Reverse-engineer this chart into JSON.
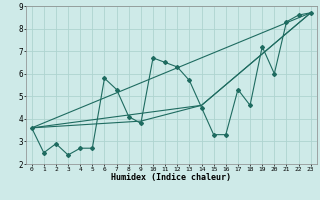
{
  "xlabel": "Humidex (Indice chaleur)",
  "bg_color": "#ceeae8",
  "grid_color": "#aed4d0",
  "line_color": "#1e6b60",
  "xlim": [
    -0.5,
    23.5
  ],
  "ylim": [
    2,
    9
  ],
  "xticks": [
    0,
    1,
    2,
    3,
    4,
    5,
    6,
    7,
    8,
    9,
    10,
    11,
    12,
    13,
    14,
    15,
    16,
    17,
    18,
    19,
    20,
    21,
    22,
    23
  ],
  "yticks": [
    2,
    3,
    4,
    5,
    6,
    7,
    8,
    9
  ],
  "series_main": {
    "x": [
      0,
      1,
      2,
      3,
      4,
      5,
      6,
      7,
      8,
      9,
      10,
      11,
      12,
      13,
      14,
      15,
      16,
      17,
      18,
      19,
      20,
      21,
      22,
      23
    ],
    "y": [
      3.6,
      2.5,
      2.9,
      2.4,
      2.7,
      2.7,
      5.8,
      5.3,
      4.1,
      3.8,
      6.7,
      6.5,
      6.3,
      5.7,
      4.5,
      3.3,
      3.3,
      5.3,
      4.6,
      7.2,
      6.0,
      8.3,
      8.6,
      8.7
    ]
  },
  "series_lines": [
    {
      "x": [
        0,
        23
      ],
      "y": [
        3.6,
        8.7
      ]
    },
    {
      "x": [
        0,
        14,
        23
      ],
      "y": [
        3.6,
        4.6,
        8.7
      ]
    },
    {
      "x": [
        0,
        9,
        14,
        23
      ],
      "y": [
        3.6,
        3.9,
        4.6,
        8.7
      ]
    }
  ]
}
